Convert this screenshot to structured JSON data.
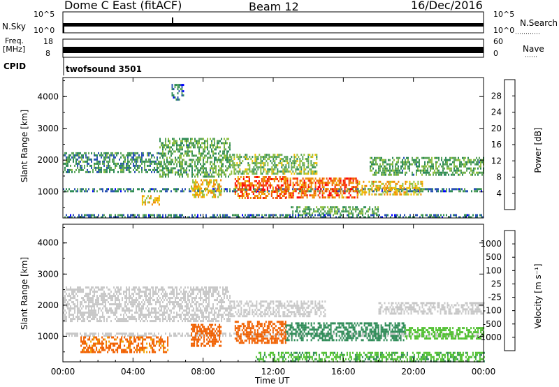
{
  "header": {
    "title": "Dome C East (fitACF)",
    "beam": "Beam 12",
    "date": "16/Dec/2016"
  },
  "nsky_panel": {
    "left_label": "N.Sky",
    "right_label": "N.Search",
    "ticks_left": [
      "10^5",
      "10^0"
    ],
    "ticks_right": [
      "10^5",
      "10^0"
    ]
  },
  "freq_panel": {
    "left_label_1": "Freq.",
    "left_label_2": "[MHz]",
    "ticks_left": [
      "18",
      "8"
    ],
    "right_label": "Nave",
    "ticks_right": [
      "60",
      "0"
    ]
  },
  "cpid": {
    "label": "CPID",
    "program": "twofsound 3501"
  },
  "colors": {
    "power_scale": [
      "#0000ff",
      "#2a52b4",
      "#2e8b57",
      "#5ca55c",
      "#90c040",
      "#f0c000",
      "#f08c00",
      "#f05000",
      "#ff0000"
    ],
    "velocity_scale": [
      "#ff0000",
      "#f06000",
      "#f0a000",
      "#c8c8c8",
      "#c8c8c8",
      "#50c030",
      "#2e8b57",
      "#2a62b0",
      "#1c3c9c"
    ]
  },
  "chart_data": [
    {
      "type": "heatmap",
      "title": "",
      "xlabel": "",
      "ylabel": "Slant Range [km]",
      "x_ticks": [
        "00:00",
        "04:00",
        "08:00",
        "12:00",
        "16:00",
        "20:00",
        "00:00"
      ],
      "y_ticks": [
        "1000",
        "2000",
        "3000",
        "4000"
      ],
      "xlim": [
        0,
        24
      ],
      "ylim": [
        180,
        4600
      ],
      "colorbar": {
        "label": "Power [dB]",
        "ticks": [
          "28",
          "24",
          "20",
          "16",
          "12",
          "8",
          "4"
        ],
        "range": [
          0,
          32
        ]
      },
      "bands": [
        {
          "t0": 0.0,
          "t1": 5.5,
          "r0": 1620,
          "r1": 2250,
          "value": 10
        },
        {
          "t0": 5.5,
          "t1": 9.5,
          "r0": 1500,
          "r1": 2700,
          "value": 12
        },
        {
          "t0": 9.5,
          "t1": 14.5,
          "r0": 1600,
          "r1": 2200,
          "value": 14
        },
        {
          "t0": 17.5,
          "t1": 24.0,
          "r0": 1550,
          "r1": 2100,
          "value": 12
        },
        {
          "t0": 0.0,
          "t1": 24.0,
          "r0": 1030,
          "r1": 1120,
          "value": 8
        },
        {
          "t0": 7.3,
          "t1": 9.0,
          "r0": 850,
          "r1": 1400,
          "value": 20
        },
        {
          "t0": 9.8,
          "t1": 12.7,
          "r0": 800,
          "r1": 1500,
          "value": 26
        },
        {
          "t0": 12.7,
          "t1": 16.8,
          "r0": 850,
          "r1": 1450,
          "value": 26
        },
        {
          "t0": 16.8,
          "t1": 20.5,
          "r0": 900,
          "r1": 1350,
          "value": 20
        },
        {
          "t0": 13.0,
          "t1": 18.0,
          "r0": 350,
          "r1": 550,
          "value": 12
        },
        {
          "t0": 0.0,
          "t1": 24.0,
          "r0": 200,
          "r1": 300,
          "value": 8
        },
        {
          "t0": 4.5,
          "t1": 5.5,
          "r0": 620,
          "r1": 900,
          "value": 20
        },
        {
          "t0": 6.2,
          "t1": 6.9,
          "r0": 3900,
          "r1": 4400,
          "value": 8
        }
      ]
    },
    {
      "type": "heatmap",
      "title": "",
      "xlabel": "Time UT",
      "ylabel": "Slant Range [km]",
      "x_ticks": [
        "00:00",
        "04:00",
        "08:00",
        "12:00",
        "16:00",
        "20:00",
        "00:00"
      ],
      "y_ticks": [
        "1000",
        "2000",
        "3000",
        "4000"
      ],
      "xlim": [
        0,
        24
      ],
      "ylim": [
        180,
        4600
      ],
      "colorbar": {
        "label": "Velocity [m s⁻¹]",
        "ticks": [
          "1000",
          "500",
          "100",
          "25",
          "-25",
          "-100",
          "-500",
          "-1000"
        ],
        "range": [
          -1000,
          1000
        ]
      },
      "bands": [
        {
          "t0": 0.0,
          "t1": 9.5,
          "r0": 1500,
          "r1": 2600,
          "value": 0
        },
        {
          "t0": 9.5,
          "t1": 15.0,
          "r0": 1650,
          "r1": 2150,
          "value": 0
        },
        {
          "t0": 18.0,
          "t1": 24.0,
          "r0": 1700,
          "r1": 2100,
          "value": 0
        },
        {
          "t0": 0.0,
          "t1": 24.0,
          "r0": 1030,
          "r1": 1120,
          "value": 0
        },
        {
          "t0": 7.3,
          "t1": 9.0,
          "r0": 700,
          "r1": 1400,
          "value": -200
        },
        {
          "t0": 9.8,
          "t1": 12.7,
          "r0": 800,
          "r1": 1500,
          "value": -300
        },
        {
          "t0": 12.7,
          "t1": 19.5,
          "r0": 850,
          "r1": 1450,
          "value": 200
        },
        {
          "t0": 19.5,
          "t1": 24.0,
          "r0": 900,
          "r1": 1300,
          "value": 60
        },
        {
          "t0": 11.0,
          "t1": 24.0,
          "r0": 200,
          "r1": 500,
          "value": 80
        },
        {
          "t0": 1.0,
          "t1": 6.0,
          "r0": 500,
          "r1": 1000,
          "value": -150
        }
      ]
    }
  ]
}
